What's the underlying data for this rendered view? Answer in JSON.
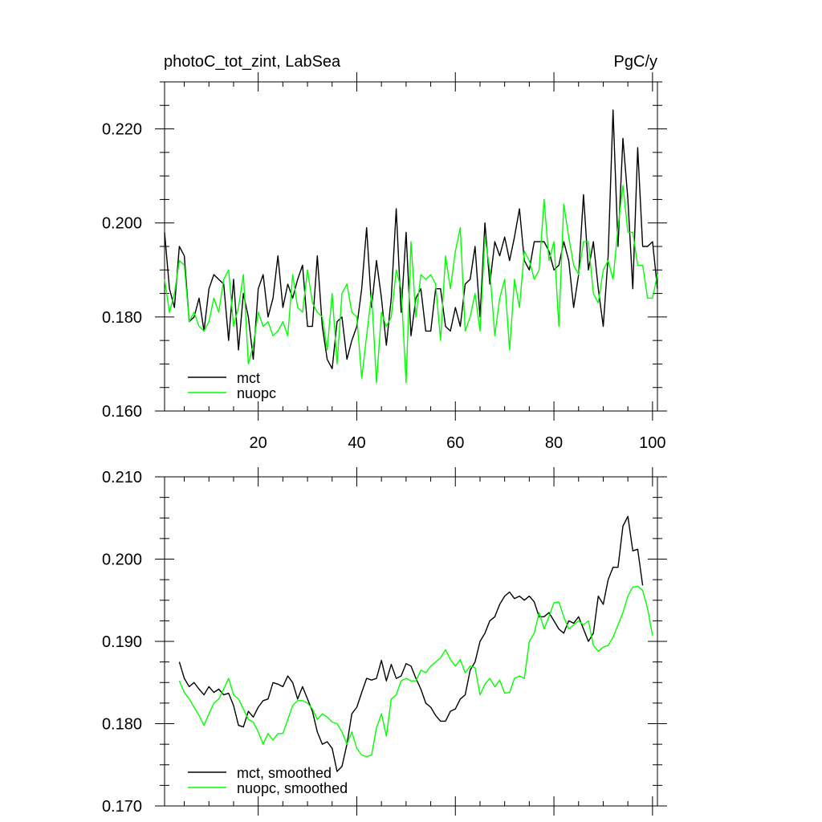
{
  "chart_data": [
    {
      "type": "line",
      "title": "photoC_tot_zint, LabSea",
      "units": "PgC/y",
      "xlim": [
        1,
        101
      ],
      "ylim": [
        0.16,
        0.23
      ],
      "x_ticks": [
        20,
        40,
        60,
        80,
        100
      ],
      "x_tick_labels": [
        "20",
        "40",
        "60",
        "80",
        "100"
      ],
      "y_ticks": [
        0.16,
        0.18,
        0.2,
        0.22
      ],
      "y_tick_labels": [
        "0.160",
        "0.180",
        "0.200",
        "0.220"
      ],
      "legend_position": "bottom-left",
      "series": [
        {
          "name": "mct",
          "color": "#000000",
          "x_start": 1,
          "values": [
            0.198,
            0.186,
            0.182,
            0.195,
            0.193,
            0.179,
            0.18,
            0.184,
            0.177,
            0.186,
            0.189,
            0.188,
            0.187,
            0.175,
            0.188,
            0.173,
            0.185,
            0.18,
            0.171,
            0.186,
            0.189,
            0.18,
            0.184,
            0.193,
            0.182,
            0.187,
            0.184,
            0.188,
            0.191,
            0.178,
            0.178,
            0.193,
            0.178,
            0.171,
            0.169,
            0.179,
            0.18,
            0.171,
            0.175,
            0.178,
            0.186,
            0.199,
            0.182,
            0.192,
            0.184,
            0.174,
            0.184,
            0.203,
            0.181,
            0.198,
            0.176,
            0.184,
            0.186,
            0.177,
            0.177,
            0.186,
            0.186,
            0.178,
            0.177,
            0.182,
            0.178,
            0.187,
            0.188,
            0.195,
            0.18,
            0.2,
            0.187,
            0.196,
            0.193,
            0.197,
            0.192,
            0.197,
            0.203,
            0.192,
            0.19,
            0.196,
            0.196,
            0.196,
            0.194,
            0.19,
            0.191,
            0.196,
            0.192,
            0.182,
            0.189,
            0.206,
            0.19,
            0.196,
            0.186,
            0.178,
            0.193,
            0.224,
            0.195,
            0.218,
            0.205,
            0.186,
            0.216,
            0.195,
            0.195,
            0.196,
            0.186
          ]
        },
        {
          "name": "nuopc",
          "color": "#00ff00",
          "x_start": 1,
          "values": [
            0.188,
            0.181,
            0.185,
            0.192,
            0.191,
            0.179,
            0.181,
            0.178,
            0.177,
            0.179,
            0.184,
            0.181,
            0.188,
            0.19,
            0.178,
            0.182,
            0.189,
            0.17,
            0.174,
            0.181,
            0.178,
            0.179,
            0.176,
            0.177,
            0.179,
            0.176,
            0.189,
            0.182,
            0.181,
            0.19,
            0.183,
            0.181,
            0.18,
            0.173,
            0.185,
            0.17,
            0.185,
            0.187,
            0.181,
            0.18,
            0.167,
            0.176,
            0.185,
            0.166,
            0.181,
            0.178,
            0.18,
            0.19,
            0.186,
            0.166,
            0.196,
            0.18,
            0.189,
            0.188,
            0.189,
            0.187,
            0.175,
            0.193,
            0.186,
            0.194,
            0.199,
            0.177,
            0.18,
            0.185,
            0.177,
            0.197,
            0.19,
            0.176,
            0.184,
            0.188,
            0.173,
            0.188,
            0.182,
            0.194,
            0.192,
            0.188,
            0.19,
            0.205,
            0.192,
            0.196,
            0.178,
            0.204,
            0.197,
            0.191,
            0.189,
            0.196,
            0.196,
            0.185,
            0.183,
            0.19,
            0.192,
            0.188,
            0.199,
            0.208,
            0.198,
            0.198,
            0.191,
            0.191,
            0.184,
            0.184,
            0.189
          ]
        }
      ]
    },
    {
      "type": "line",
      "title": "",
      "xlim": [
        1,
        101
      ],
      "ylim": [
        0.17,
        0.21
      ],
      "x_ticks": [
        20,
        40,
        60,
        80,
        100
      ],
      "x_tick_labels": [
        "",
        "",
        "",
        "",
        ""
      ],
      "y_ticks": [
        0.17,
        0.18,
        0.19,
        0.2,
        0.21
      ],
      "y_tick_labels": [
        "0.170",
        "0.180",
        "0.190",
        "0.200",
        "0.210"
      ],
      "legend_position": "bottom-left",
      "series": [
        {
          "name": "mct, smoothed",
          "color": "#000000",
          "x_start": 4,
          "values": [
            0.1875,
            0.1855,
            0.1845,
            0.185,
            0.1842,
            0.1835,
            0.1845,
            0.1838,
            0.1842,
            0.1835,
            0.1837,
            0.1822,
            0.1798,
            0.1796,
            0.1815,
            0.1808,
            0.182,
            0.1828,
            0.183,
            0.185,
            0.1848,
            0.1845,
            0.1858,
            0.185,
            0.183,
            0.1845,
            0.183,
            0.1815,
            0.179,
            0.1775,
            0.1778,
            0.177,
            0.1742,
            0.1748,
            0.1775,
            0.1812,
            0.182,
            0.1838,
            0.1855,
            0.1853,
            0.1855,
            0.1877,
            0.1852,
            0.1872,
            0.1855,
            0.1858,
            0.1873,
            0.187,
            0.1855,
            0.1842,
            0.1825,
            0.182,
            0.181,
            0.1803,
            0.1803,
            0.1815,
            0.1818,
            0.183,
            0.1835,
            0.1865,
            0.1875,
            0.19,
            0.191,
            0.1925,
            0.193,
            0.1945,
            0.1955,
            0.196,
            0.1952,
            0.1955,
            0.195,
            0.1955,
            0.1948,
            0.193,
            0.193,
            0.1935,
            0.1925,
            0.1915,
            0.191,
            0.1925,
            0.1922,
            0.193,
            0.1915,
            0.19,
            0.191,
            0.1955,
            0.1945,
            0.1975,
            0.199,
            0.199,
            0.204,
            0.2052,
            0.201,
            0.2012,
            0.1968
          ]
        },
        {
          "name": "nuopc, smoothed",
          "color": "#00ff00",
          "x_start": 4,
          "values": [
            0.1852,
            0.1838,
            0.183,
            0.182,
            0.181,
            0.1798,
            0.1812,
            0.1825,
            0.183,
            0.1842,
            0.1855,
            0.1835,
            0.183,
            0.1818,
            0.1805,
            0.1802,
            0.179,
            0.1775,
            0.1788,
            0.178,
            0.1788,
            0.1788,
            0.1805,
            0.1822,
            0.1828,
            0.1828,
            0.1825,
            0.1818,
            0.1805,
            0.1812,
            0.1808,
            0.1802,
            0.18,
            0.179,
            0.1775,
            0.179,
            0.177,
            0.1762,
            0.176,
            0.1762,
            0.1795,
            0.1812,
            0.1785,
            0.183,
            0.1835,
            0.1852,
            0.1855,
            0.1852,
            0.1852,
            0.1865,
            0.1862,
            0.187,
            0.1875,
            0.188,
            0.189,
            0.1878,
            0.187,
            0.1878,
            0.1862,
            0.187,
            0.1868,
            0.1835,
            0.1848,
            0.1855,
            0.1845,
            0.1853,
            0.1837,
            0.1838,
            0.1855,
            0.1858,
            0.1855,
            0.19,
            0.191,
            0.1935,
            0.1915,
            0.193,
            0.1947,
            0.1948,
            0.193,
            0.1915,
            0.192,
            0.1925,
            0.192,
            0.1925,
            0.1895,
            0.1888,
            0.1893,
            0.1895,
            0.1905,
            0.192,
            0.1935,
            0.1955,
            0.1966,
            0.1967,
            0.1962,
            0.194,
            0.1907
          ]
        }
      ]
    }
  ]
}
